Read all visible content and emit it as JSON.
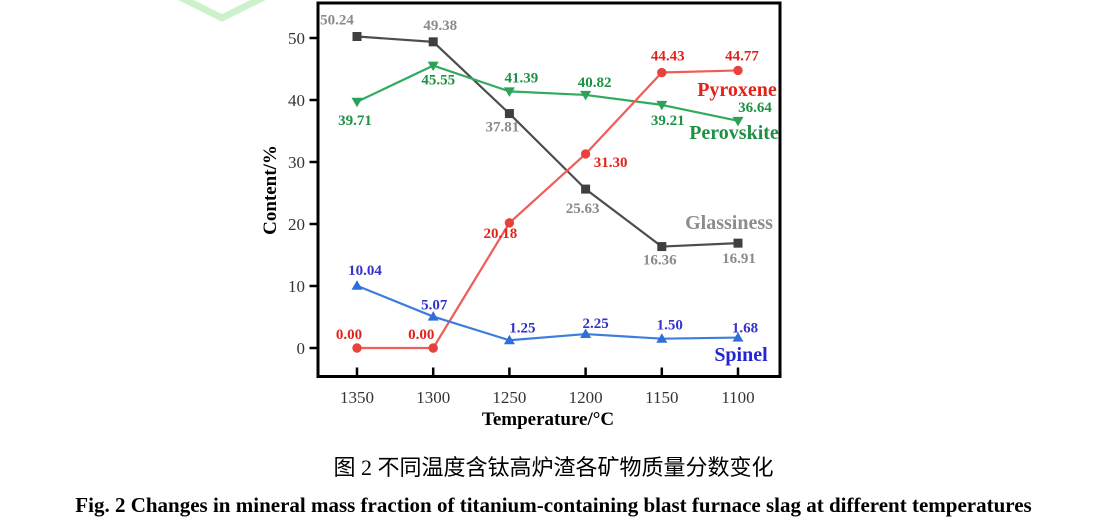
{
  "figure": {
    "caption_zh": "图 2 不同温度含钛高炉渣各矿物质量分数变化",
    "caption_en": "Fig. 2 Changes in mineral mass fraction of titanium-containing blast furnace slag at different temperatures"
  },
  "chart_data": {
    "type": "line",
    "title": "",
    "xlabel": "Temperature/°C",
    "ylabel": "Content/%",
    "x_categories": [
      "1350",
      "1300",
      "1250",
      "1200",
      "1150",
      "1100"
    ],
    "y_ticks": [
      0,
      10,
      20,
      30,
      40,
      50
    ],
    "ylim": [
      0,
      55.5
    ],
    "grid": false,
    "legend_position": "inline-right",
    "watermark_color": "#ccf2cb",
    "axis_color": "#000000",
    "tick_label_color": "#333333",
    "series": [
      {
        "name": "Glassiness",
        "marker": "square",
        "line_color": "#4d4d4d",
        "marker_color": "#3f3f3f",
        "label_color": "#8a8a8a",
        "name_color": "#8c8c8c",
        "values": [
          50.24,
          49.38,
          37.81,
          25.63,
          16.36,
          16.91
        ],
        "label_offsets": [
          [
            -20,
            -12
          ],
          [
            7,
            -12
          ],
          [
            -7,
            18
          ],
          [
            -3,
            24
          ],
          [
            -2,
            18
          ],
          [
            1,
            20
          ]
        ],
        "name_pos": [
          729,
          229
        ]
      },
      {
        "name": "Perovskite",
        "marker": "triangle-down",
        "line_color": "#32ab60",
        "marker_color": "#2aa257",
        "label_color": "#1d9144",
        "name_color": "#1d9144",
        "values": [
          39.71,
          45.55,
          41.39,
          40.82,
          39.21,
          36.64
        ],
        "label_offsets": [
          [
            -2,
            23
          ],
          [
            5,
            19
          ],
          [
            12,
            -9
          ],
          [
            9,
            -8
          ],
          [
            6,
            20
          ],
          [
            17,
            -9
          ]
        ],
        "name_pos": [
          734,
          139
        ]
      },
      {
        "name": "Pyroxene",
        "marker": "circle",
        "line_color": "#f05c57",
        "marker_color": "#e9423d",
        "label_color": "#e2231c",
        "name_color": "#e2231c",
        "values": [
          0.0,
          0.0,
          20.18,
          31.3,
          44.43,
          44.77
        ],
        "label_offsets": [
          [
            -8,
            -9
          ],
          [
            -12,
            -9
          ],
          [
            -9,
            15
          ],
          [
            25,
            13
          ],
          [
            6,
            -12
          ],
          [
            4,
            -10
          ]
        ],
        "name_pos": [
          737,
          96
        ]
      },
      {
        "name": "Spinel",
        "marker": "triangle-up",
        "line_color": "#3c7ede",
        "marker_color": "#2f70d8",
        "label_color": "#3333cc",
        "name_color": "#2424d2",
        "values": [
          10.04,
          5.07,
          1.25,
          2.25,
          1.5,
          1.68
        ],
        "label_offsets": [
          [
            8,
            -11
          ],
          [
            1,
            -7
          ],
          [
            13,
            -8
          ],
          [
            10,
            -6
          ],
          [
            8,
            -9
          ],
          [
            7,
            -5
          ]
        ],
        "name_pos": [
          741,
          361
        ]
      }
    ]
  }
}
